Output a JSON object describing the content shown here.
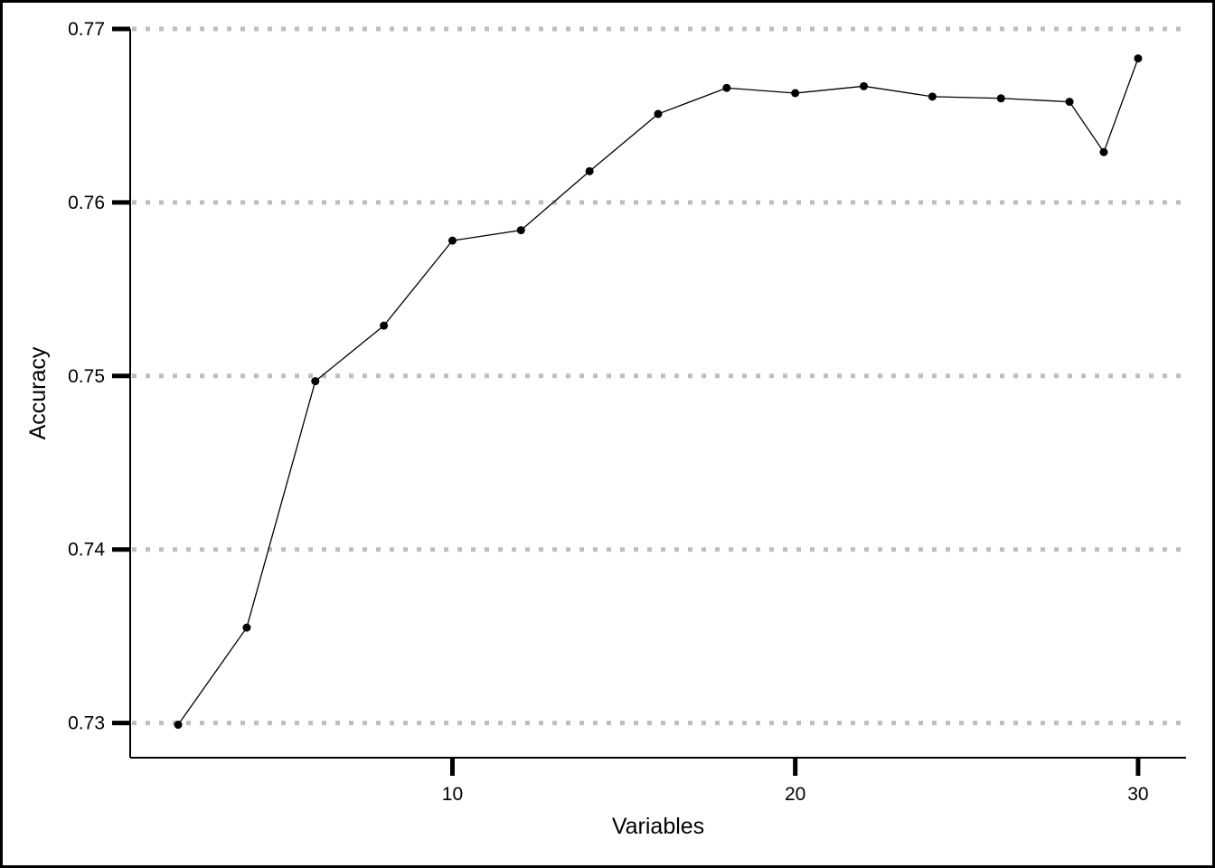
{
  "chart_data": {
    "type": "line",
    "title": "",
    "xlabel": "Variables",
    "ylabel": "Accuracy",
    "xlim": [
      0.6,
      31.4
    ],
    "ylim": [
      0.728,
      0.77
    ],
    "x_ticks": [
      10,
      20,
      30
    ],
    "y_ticks": [
      0.73,
      0.74,
      0.75,
      0.76,
      0.77
    ],
    "x_tick_labels": [
      "10",
      "20",
      "30"
    ],
    "y_tick_labels": [
      "0.73",
      "0.74",
      "0.75",
      "0.76",
      "0.77"
    ],
    "grid": "horizontal dotted",
    "series": [
      {
        "x": [
          2,
          4,
          6,
          8,
          10,
          12,
          14,
          16,
          18,
          20,
          22,
          24,
          26,
          28,
          29,
          30
        ],
        "y": [
          0.7299,
          0.7355,
          0.7497,
          0.7529,
          0.7578,
          0.7584,
          0.7618,
          0.7651,
          0.7666,
          0.7663,
          0.7667,
          0.7661,
          0.766,
          0.7658,
          0.7629,
          0.7683
        ]
      }
    ],
    "colors": {
      "line": "#000000",
      "grid": "#bebebe",
      "axis": "#000000"
    }
  }
}
